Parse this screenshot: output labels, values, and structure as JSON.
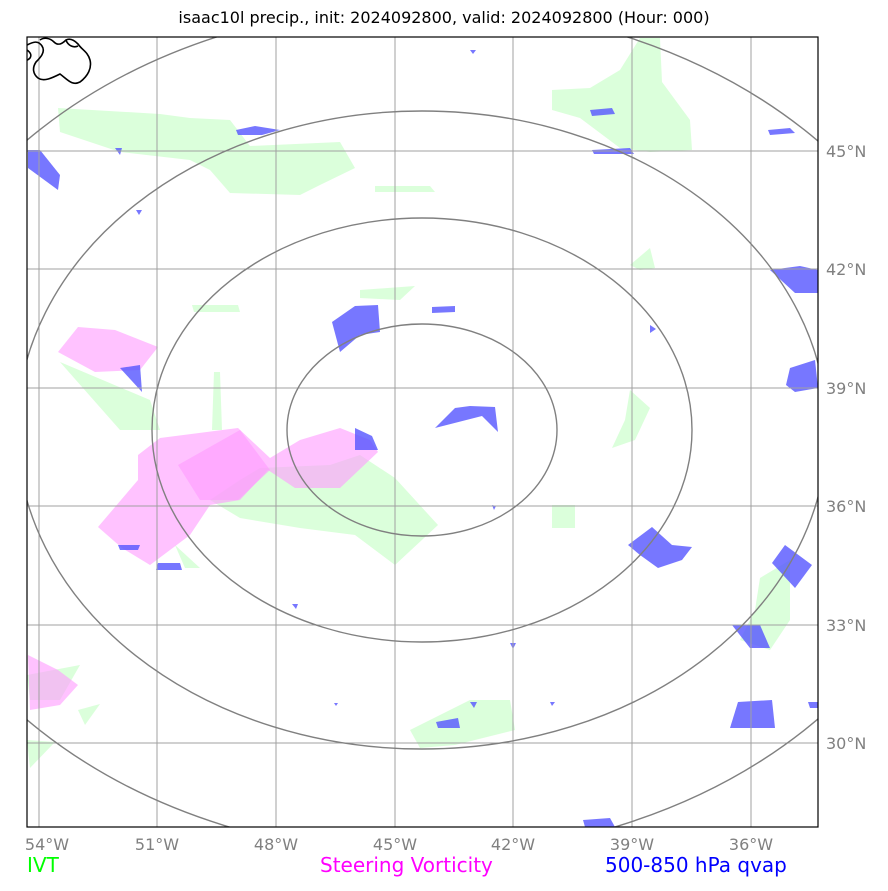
{
  "title": "isaac10l precip., init: 2024092800, valid: 2024092800 (Hour: 000)",
  "longitude_labels": [
    "54°W",
    "51°W",
    "48°W",
    "45°W",
    "42°W",
    "39°W",
    "36°W"
  ],
  "latitude_labels": [
    "45°N",
    "42°N",
    "39°N",
    "36°N",
    "33°N",
    "30°N"
  ],
  "legend": {
    "ivt": "IVT",
    "steering_vorticity": "Steering Vorticity",
    "qvap": "500-850 hPa qvap"
  },
  "colors": {
    "ivt": "#00ff00",
    "steering_vorticity": "#ff00ff",
    "qvap": "#0000ff",
    "ivt_fill": "#ccffcc",
    "vorticity_fill": "#ff99ff",
    "qvap_fill": "#5555ff",
    "grid": "#a0a0a0",
    "range_rings": "#808080",
    "axis_labels": "#808080"
  }
}
